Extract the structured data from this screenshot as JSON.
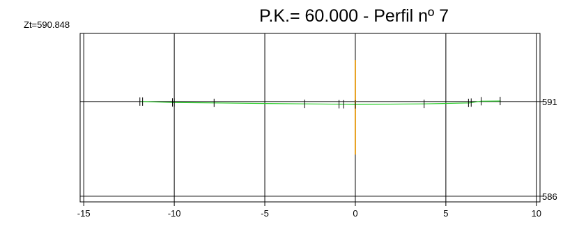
{
  "chart_data": {
    "type": "line",
    "title": "P.K.=  60.000 - Perfil nº 7",
    "datum_label": "Zt=590.848",
    "xlabel": "",
    "ylabel": "",
    "xlim": [
      -15.2,
      10.2
    ],
    "ylim": [
      585.7,
      594.6
    ],
    "x_ticks": [
      -15,
      -10,
      -5,
      0,
      5,
      10
    ],
    "x_tick_labels": [
      "-15",
      "-10",
      "-5",
      "0",
      "5",
      "10"
    ],
    "y_ticks": [
      586,
      591
    ],
    "y_tick_labels": [
      "586",
      "591"
    ],
    "grid": true,
    "axis_line": {
      "x": 0,
      "y_from": 588.2,
      "y_to": 593.2
    },
    "series": [
      {
        "color": "#22cc22",
        "points": [
          {
            "x": -11.8,
            "y": 591.0
          },
          {
            "x": -10.05,
            "y": 590.95
          },
          {
            "x": -7.8,
            "y": 590.93
          },
          {
            "x": -2.8,
            "y": 590.88
          },
          {
            "x": -0.8,
            "y": 590.86
          },
          {
            "x": 0.0,
            "y": 590.85
          },
          {
            "x": 3.8,
            "y": 590.88
          },
          {
            "x": 6.3,
            "y": 590.93
          },
          {
            "x": 6.95,
            "y": 591.02
          },
          {
            "x": 8.0,
            "y": 591.03
          }
        ]
      }
    ],
    "vertex_marks_x": [
      -11.9,
      -11.75,
      -10.1,
      -10.0,
      -7.8,
      -2.8,
      -0.9,
      -0.65,
      0.0,
      3.8,
      6.25,
      6.4,
      6.95,
      8.0
    ],
    "colors": {
      "profile": "#22cc22",
      "axis_line": "#e8a020",
      "grid": "#000000"
    }
  }
}
